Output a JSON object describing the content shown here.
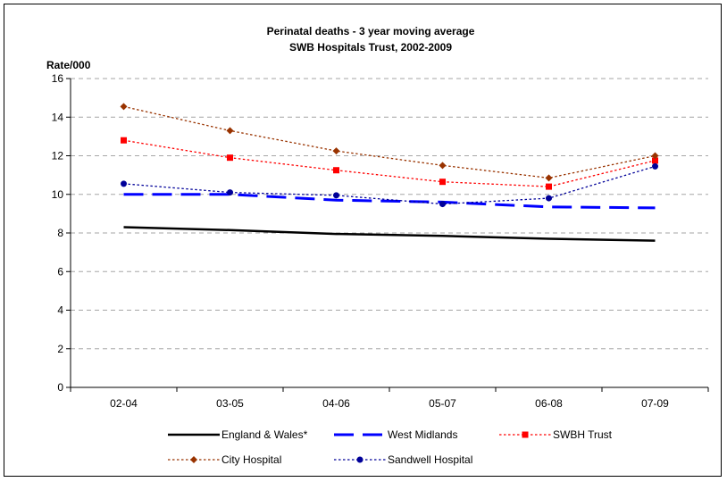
{
  "chart_data": {
    "type": "line",
    "title": "Perinatal deaths - 3 year moving average",
    "subtitle": "SWB Hospitals Trust, 2002-2009",
    "ylabel": "Rate/000",
    "xlabel": "",
    "categories": [
      "02-04",
      "03-05",
      "04-06",
      "05-07",
      "06-08",
      "07-09"
    ],
    "ylim": [
      0,
      16
    ],
    "yticks": [
      0,
      2,
      4,
      6,
      8,
      10,
      12,
      14,
      16
    ],
    "grid": true,
    "legend_position": "bottom",
    "series": [
      {
        "name": "England & Wales*",
        "values": [
          8.3,
          8.15,
          7.95,
          7.85,
          7.7,
          7.6
        ],
        "color": "#000000",
        "style": "solid",
        "marker": "none"
      },
      {
        "name": "West Midlands",
        "values": [
          10.0,
          10.0,
          9.7,
          9.6,
          9.35,
          9.3
        ],
        "color": "#0000ff",
        "style": "long-dash",
        "marker": "none"
      },
      {
        "name": "SWBH Trust",
        "values": [
          12.8,
          11.9,
          11.25,
          10.65,
          10.4,
          11.75
        ],
        "color": "#ff0000",
        "style": "dotted",
        "marker": "square"
      },
      {
        "name": "City Hospital",
        "values": [
          14.55,
          13.3,
          12.25,
          11.5,
          10.85,
          12.0
        ],
        "color": "#993300",
        "style": "dotted",
        "marker": "diamond"
      },
      {
        "name": "Sandwell Hospital",
        "values": [
          10.55,
          10.1,
          9.95,
          9.5,
          9.8,
          11.45
        ],
        "color": "#000099",
        "style": "dotted",
        "marker": "circle"
      }
    ]
  }
}
